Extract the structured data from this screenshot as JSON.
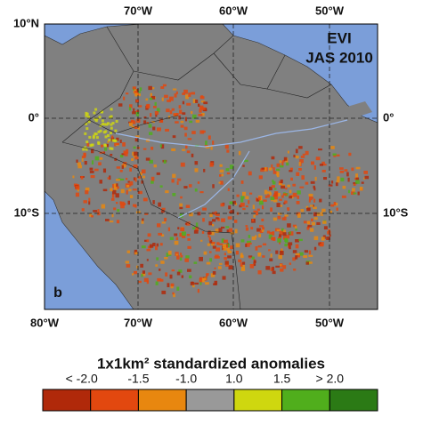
{
  "map": {
    "title_lines": [
      "EVI",
      "JAS 2010"
    ],
    "panel_label": "b",
    "top_lon_labels": [
      "70°W",
      "60°W",
      "50°W"
    ],
    "bottom_lon_labels": [
      "80°W",
      "70°W",
      "60°W",
      "50°W"
    ],
    "left_lat_labels": [
      "10°N",
      "0°",
      "10°S"
    ],
    "right_lat_labels": [
      "0°",
      "10°S"
    ]
  },
  "legend": {
    "title": "1x1km² standardized anomalies",
    "labels": [
      "< -2.0",
      "-1.5",
      "-1.0",
      "1.0",
      "1.5",
      "> 2.0"
    ],
    "colors": [
      "#b0290a",
      "#e2480f",
      "#e8870f",
      "#999999",
      "#cfd70f",
      "#50ae1c",
      "#2b7a15"
    ]
  }
}
